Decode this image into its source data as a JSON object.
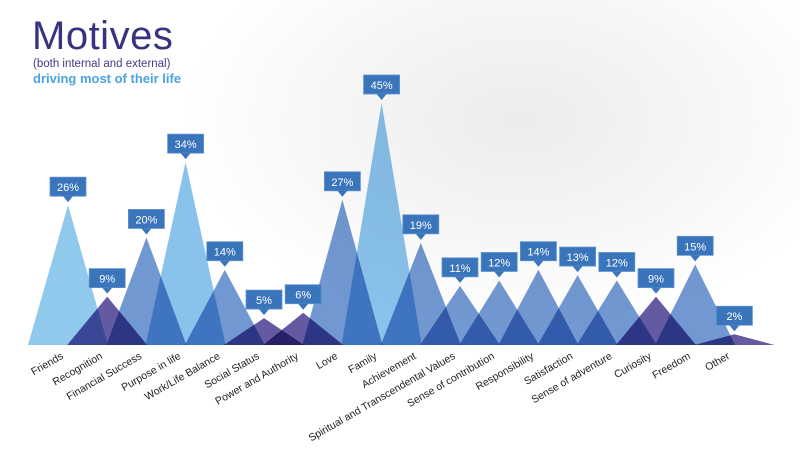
{
  "chart_data": {
    "type": "area",
    "title": "Motives",
    "subtitle": "(both internal and external)",
    "subtitle2": "driving most of their life",
    "xlabel": "",
    "ylabel": "",
    "ylim": [
      0,
      45
    ],
    "grid": false,
    "categories": [
      "Friends",
      "Recognition",
      "Financial Success",
      "Purpose in life",
      "Work/Life Balance",
      "Social Status",
      "Power and Authority",
      "Love",
      "Family",
      "Achievement",
      "Spiritual and Transcendental Values",
      "Sense of contribution",
      "Responsibility",
      "Satisfaction",
      "Sense of adventure",
      "Curiosity",
      "Freedom",
      "Other"
    ],
    "values": [
      26,
      9,
      20,
      34,
      14,
      5,
      6,
      27,
      45,
      19,
      11,
      12,
      14,
      13,
      12,
      9,
      15,
      2
    ],
    "labels": [
      "26%",
      "9%",
      "20%",
      "34%",
      "14%",
      "5%",
      "6%",
      "27%",
      "45%",
      "19%",
      "11%",
      "12%",
      "14%",
      "13%",
      "12%",
      "9%",
      "15%",
      "2%"
    ],
    "colors": [
      "#82c1ea",
      "#4f4394",
      "#5f8acb",
      "#79b9e8",
      "#5f8acb",
      "#4f4394",
      "#4f4394",
      "#5f8acb",
      "#79b9e8",
      "#5f8acb",
      "#5f8acb",
      "#5f8acb",
      "#5f8acb",
      "#5f8acb",
      "#5f8acb",
      "#4f4394",
      "#5f8acb",
      "#4f4394"
    ],
    "label_box_color": "#3a74bb"
  }
}
